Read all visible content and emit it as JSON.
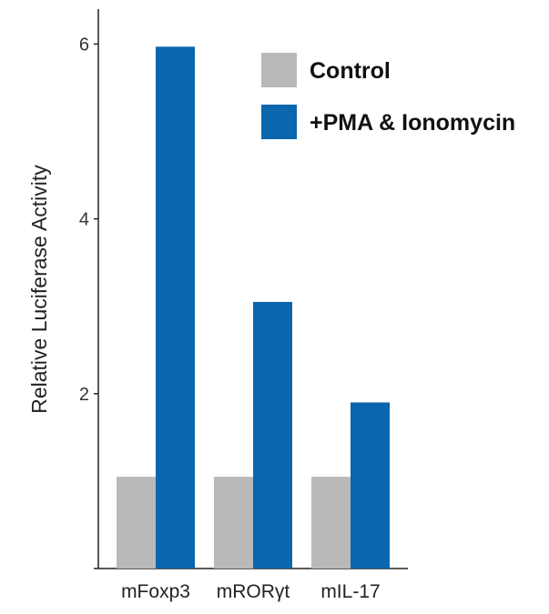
{
  "chart_data": {
    "type": "bar",
    "ylabel": "Relative Luciferase Activity",
    "xlabel": "",
    "ylim": [
      0,
      6.4
    ],
    "yticks": [
      2,
      4,
      6
    ],
    "ytick_labels": [
      "2",
      "4",
      "6"
    ],
    "categories": [
      "mFoxp3",
      "mRORγt",
      "mIL-17"
    ],
    "series": [
      {
        "name": "Control",
        "color": "#b9b9b9",
        "values": [
          1.05,
          1.05,
          1.05
        ]
      },
      {
        "name": "+PMA & Ionomycin",
        "color": "#0a66ad",
        "values": [
          5.97,
          3.05,
          1.9
        ]
      }
    ],
    "legend_position": "top-right",
    "grid": false
  }
}
